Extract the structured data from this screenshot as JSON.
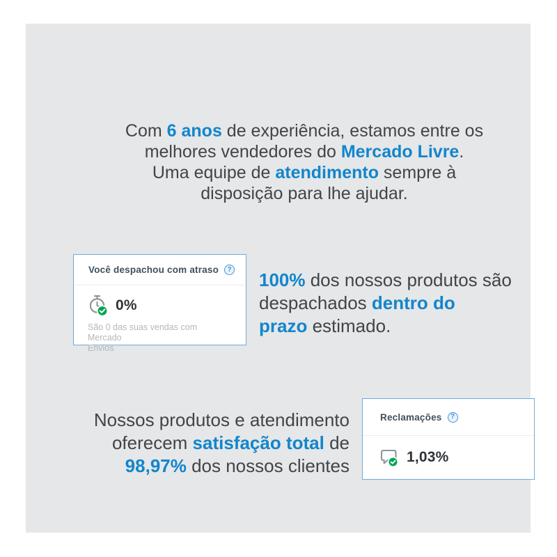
{
  "colors": {
    "accent": "#1385cc",
    "panel_bg": "#e5e7e8",
    "card_border": "#74aad7",
    "green": "#00a650",
    "text_dark": "#414549",
    "muted": "#b3b7ba"
  },
  "ui": {
    "help_glyph": "?"
  },
  "intro": {
    "lines": [
      [
        {
          "t": "Com "
        },
        {
          "t": "6 anos",
          "hl": true
        },
        {
          "t": " de experiência, estamos entre os"
        }
      ],
      [
        {
          "t": "melhores vendedores do "
        },
        {
          "t": "Mercado Livre",
          "hl": true
        },
        {
          "t": "."
        }
      ],
      [
        {
          "t": "Uma equipe de "
        },
        {
          "t": "atendimento",
          "hl": true
        },
        {
          "t": " sempre à"
        }
      ],
      [
        {
          "t": "disposição para lhe ajudar."
        }
      ]
    ]
  },
  "shipping_card": {
    "title": "Você despachou com atraso",
    "value": "0%",
    "note_lines": [
      [
        {
          "t": "São 0 das suas vendas com Mercado"
        }
      ],
      [
        {
          "t": "Envios"
        }
      ]
    ]
  },
  "shipping_text": {
    "lines": [
      [
        {
          "t": "100%",
          "hl": true
        },
        {
          "t": " dos nossos produtos são"
        }
      ],
      [
        {
          "t": "despachados "
        },
        {
          "t": "dentro do",
          "hl": true
        }
      ],
      [
        {
          "t": "prazo",
          "hl": true
        },
        {
          "t": " estimado."
        }
      ]
    ]
  },
  "satisfaction_text": {
    "lines": [
      [
        {
          "t": "Nossos produtos e atendimento"
        }
      ],
      [
        {
          "t": "oferecem "
        },
        {
          "t": "satisfação total",
          "hl": true
        },
        {
          "t": " de"
        }
      ],
      [
        {
          "t": "98,97%",
          "hl": true
        },
        {
          "t": " dos nossos clientes"
        }
      ]
    ]
  },
  "claims_card": {
    "title": "Reclamações",
    "value": "1,03%"
  }
}
